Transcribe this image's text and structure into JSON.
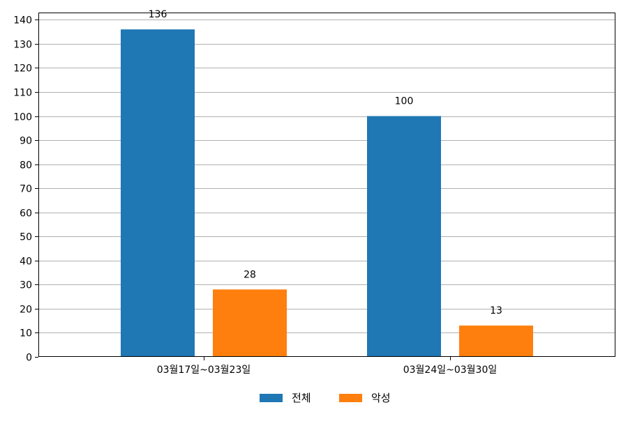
{
  "chart_data": {
    "type": "bar",
    "categories": [
      "03월17일~03월23일",
      "03월24일~03월30일"
    ],
    "series": [
      {
        "name": "전체",
        "values": [
          136,
          100
        ],
        "color": "#1f77b4"
      },
      {
        "name": "악성",
        "values": [
          28,
          13
        ],
        "color": "#ff7f0e"
      }
    ],
    "yticks": [
      0,
      10,
      20,
      30,
      40,
      50,
      60,
      70,
      80,
      90,
      100,
      110,
      120,
      130,
      140
    ],
    "ylim": [
      0,
      143
    ],
    "grid": true,
    "data_labels": true,
    "legend_position": "bottom-center",
    "title": "",
    "xlabel": "",
    "ylabel": ""
  }
}
